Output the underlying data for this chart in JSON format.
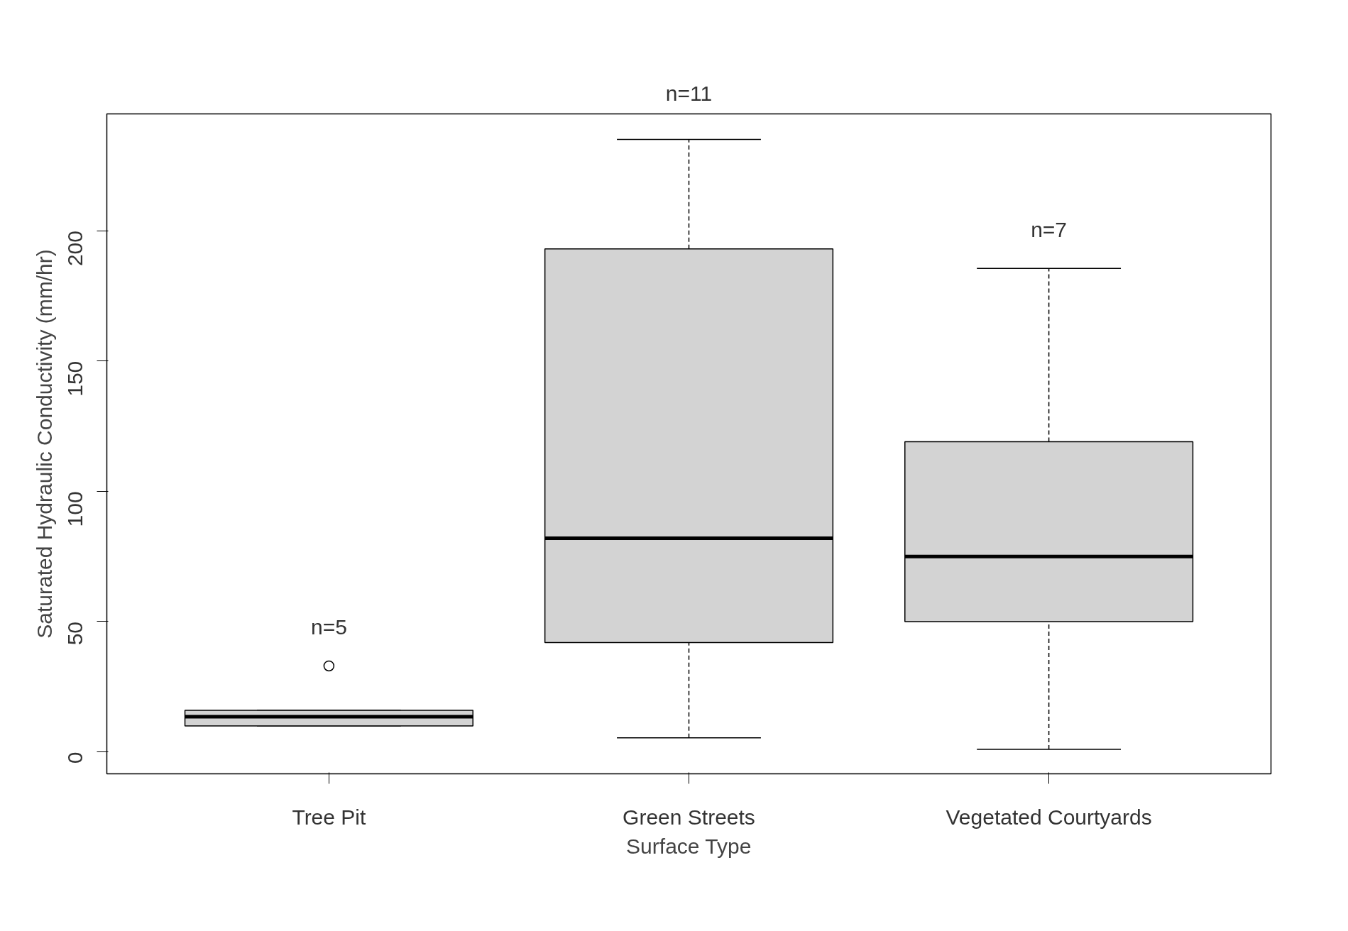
{
  "chart_data": {
    "type": "box",
    "xlabel": "Surface Type",
    "ylabel": "Saturated Hydraulic Conductivity (mm/hr)",
    "categories": [
      "Tree Pit",
      "Green Streets",
      "Vegetated Courtyards"
    ],
    "boxes": [
      {
        "low": 10,
        "q1": 10,
        "median": 13.5,
        "q3": 16,
        "high": 16,
        "outliers": [
          33
        ]
      },
      {
        "low": 5.4,
        "q1": 42,
        "median": 82,
        "q3": 193,
        "high": 235
      },
      {
        "low": 1,
        "q1": 50,
        "median": 75,
        "q3": 119,
        "high": 185.5
      }
    ],
    "color": "#d3d3d3",
    "ylim": [
      -8.4,
      244.8
    ],
    "yticks": [
      0,
      50,
      100,
      150,
      200
    ],
    "grid": false,
    "annotations": [
      "n=5",
      "n=11",
      "n=7"
    ]
  }
}
